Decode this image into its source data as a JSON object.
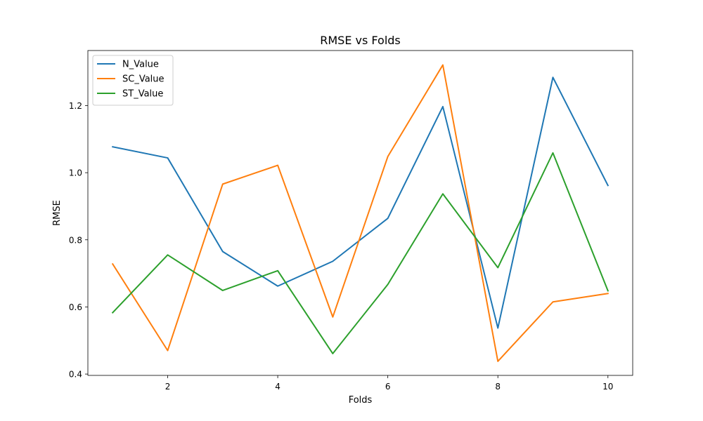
{
  "chart_data": {
    "type": "line",
    "title": "RMSE vs Folds",
    "xlabel": "Folds",
    "ylabel": "RMSE",
    "x": [
      1,
      2,
      3,
      4,
      5,
      6,
      7,
      8,
      9,
      10
    ],
    "xlim": [
      0.55,
      10.45
    ],
    "ylim": [
      0.396,
      1.364
    ],
    "xticks": [
      2,
      4,
      6,
      8,
      10
    ],
    "yticks": [
      0.4,
      0.6,
      0.8,
      1.0,
      1.2
    ],
    "xtick_labels": [
      "2",
      "4",
      "6",
      "8",
      "10"
    ],
    "ytick_labels": [
      "0.4",
      "0.6",
      "0.8",
      "1.0",
      "1.2"
    ],
    "grid": false,
    "legend_position": "top-left",
    "series": [
      {
        "name": "N_Value",
        "color": "#1f77b4",
        "values": [
          1.077,
          1.044,
          0.765,
          0.662,
          0.736,
          0.864,
          1.197,
          0.537,
          1.284,
          0.962
        ]
      },
      {
        "name": "SC_Value",
        "color": "#ff7f0e",
        "values": [
          0.728,
          0.47,
          0.966,
          1.022,
          0.57,
          1.048,
          1.321,
          0.438,
          0.615,
          0.64
        ]
      },
      {
        "name": "ST_Value",
        "color": "#2ca02c",
        "values": [
          0.583,
          0.755,
          0.649,
          0.708,
          0.461,
          0.667,
          0.937,
          0.717,
          1.059,
          0.648
        ]
      }
    ]
  }
}
